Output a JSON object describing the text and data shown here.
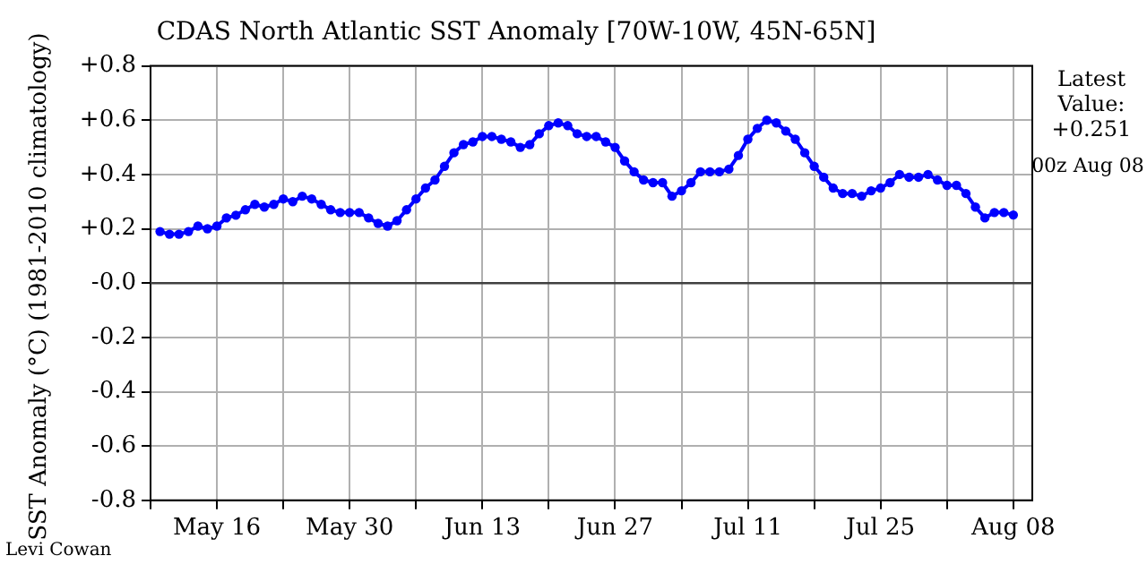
{
  "chart_data": {
    "type": "line",
    "title": "CDAS North Atlantic SST Anomaly [70W-10W, 45N-65N]",
    "ylabel": "SST Anomaly (°C) (1981-2010 climatology)",
    "annotations": [
      "Latest Value: +0.251",
      "00z Aug 08",
      "Levi Cowan"
    ],
    "x": [
      "--05-10",
      "--05-11",
      "--05-12",
      "--05-13",
      "--05-14",
      "--05-15",
      "--05-16",
      "--05-17",
      "--05-18",
      "--05-19",
      "--05-20",
      "--05-21",
      "--05-22",
      "--05-23",
      "--05-24",
      "--05-25",
      "--05-26",
      "--05-27",
      "--05-28",
      "--05-29",
      "--05-30",
      "--05-31",
      "--06-01",
      "--06-02",
      "--06-03",
      "--06-04",
      "--06-05",
      "--06-06",
      "--06-07",
      "--06-08",
      "--06-09",
      "--06-10",
      "--06-11",
      "--06-12",
      "--06-13",
      "--06-14",
      "--06-15",
      "--06-16",
      "--06-17",
      "--06-18",
      "--06-19",
      "--06-20",
      "--06-21",
      "--06-22",
      "--06-23",
      "--06-24",
      "--06-25",
      "--06-26",
      "--06-27",
      "--06-28",
      "--06-29",
      "--06-30",
      "--07-01",
      "--07-02",
      "--07-03",
      "--07-04",
      "--07-05",
      "--07-06",
      "--07-07",
      "--07-08",
      "--07-09",
      "--07-10",
      "--07-11",
      "--07-12",
      "--07-13",
      "--07-14",
      "--07-15",
      "--07-16",
      "--07-17",
      "--07-18",
      "--07-19",
      "--07-20",
      "--07-21",
      "--07-22",
      "--07-23",
      "--07-24",
      "--07-25",
      "--07-26",
      "--07-27",
      "--07-28",
      "--07-29",
      "--07-30",
      "--07-31",
      "--08-01",
      "--08-02",
      "--08-03",
      "--08-04",
      "--08-05",
      "--08-06",
      "--08-07",
      "--08-08"
    ],
    "series": [
      {
        "color": "#0000ff",
        "values": [
          0.19,
          0.18,
          0.18,
          0.19,
          0.21,
          0.2,
          0.21,
          0.24,
          0.25,
          0.27,
          0.29,
          0.28,
          0.29,
          0.31,
          0.3,
          0.32,
          0.31,
          0.29,
          0.27,
          0.26,
          0.26,
          0.26,
          0.24,
          0.22,
          0.21,
          0.23,
          0.27,
          0.31,
          0.35,
          0.38,
          0.43,
          0.48,
          0.51,
          0.52,
          0.54,
          0.54,
          0.53,
          0.52,
          0.5,
          0.51,
          0.55,
          0.58,
          0.59,
          0.58,
          0.55,
          0.54,
          0.54,
          0.52,
          0.5,
          0.45,
          0.41,
          0.38,
          0.37,
          0.37,
          0.32,
          0.34,
          0.37,
          0.41,
          0.41,
          0.41,
          0.42,
          0.47,
          0.53,
          0.57,
          0.6,
          0.59,
          0.56,
          0.53,
          0.48,
          0.43,
          0.39,
          0.35,
          0.33,
          0.33,
          0.32,
          0.34,
          0.35,
          0.37,
          0.4,
          0.39,
          0.39,
          0.4,
          0.38,
          0.36,
          0.36,
          0.33,
          0.28,
          0.24,
          0.26,
          0.26,
          0.251
        ]
      }
    ],
    "xlim": [
      "--05-09",
      "--08-10"
    ],
    "xticks": [
      {
        "value": "--05-09",
        "label": null
      },
      {
        "value": "--05-16",
        "label": "May 16"
      },
      {
        "value": "--05-23",
        "label": null
      },
      {
        "value": "--05-30",
        "label": "May 30"
      },
      {
        "value": "--06-06",
        "label": null
      },
      {
        "value": "--06-13",
        "label": "Jun 13"
      },
      {
        "value": "--06-20",
        "label": null
      },
      {
        "value": "--06-27",
        "label": "Jun 27"
      },
      {
        "value": "--07-04",
        "label": null
      },
      {
        "value": "--07-11",
        "label": "Jul 11"
      },
      {
        "value": "--07-18",
        "label": null
      },
      {
        "value": "--07-25",
        "label": "Jul 25"
      },
      {
        "value": "--08-01",
        "label": null
      },
      {
        "value": "--08-08",
        "label": "Aug 08"
      }
    ],
    "ylim": [
      -0.8,
      0.8
    ],
    "yticks": [
      {
        "value": -0.8,
        "label": "-0.8"
      },
      {
        "value": -0.6,
        "label": "-0.6"
      },
      {
        "value": -0.4,
        "label": "-0.4"
      },
      {
        "value": -0.2,
        "label": "-0.2"
      },
      {
        "value": 0,
        "label": "-0.0"
      },
      {
        "value": 0.2,
        "label": "+0.2"
      },
      {
        "value": 0.4,
        "label": "+0.4"
      },
      {
        "value": 0.6,
        "label": "+0.6"
      },
      {
        "value": 0.8,
        "label": "+0.8"
      }
    ],
    "ref_lines": [
      {
        "axis": "y",
        "value": 0,
        "color": "#404040"
      }
    ],
    "grid": true,
    "marker": "circle",
    "line_style": "solid"
  }
}
